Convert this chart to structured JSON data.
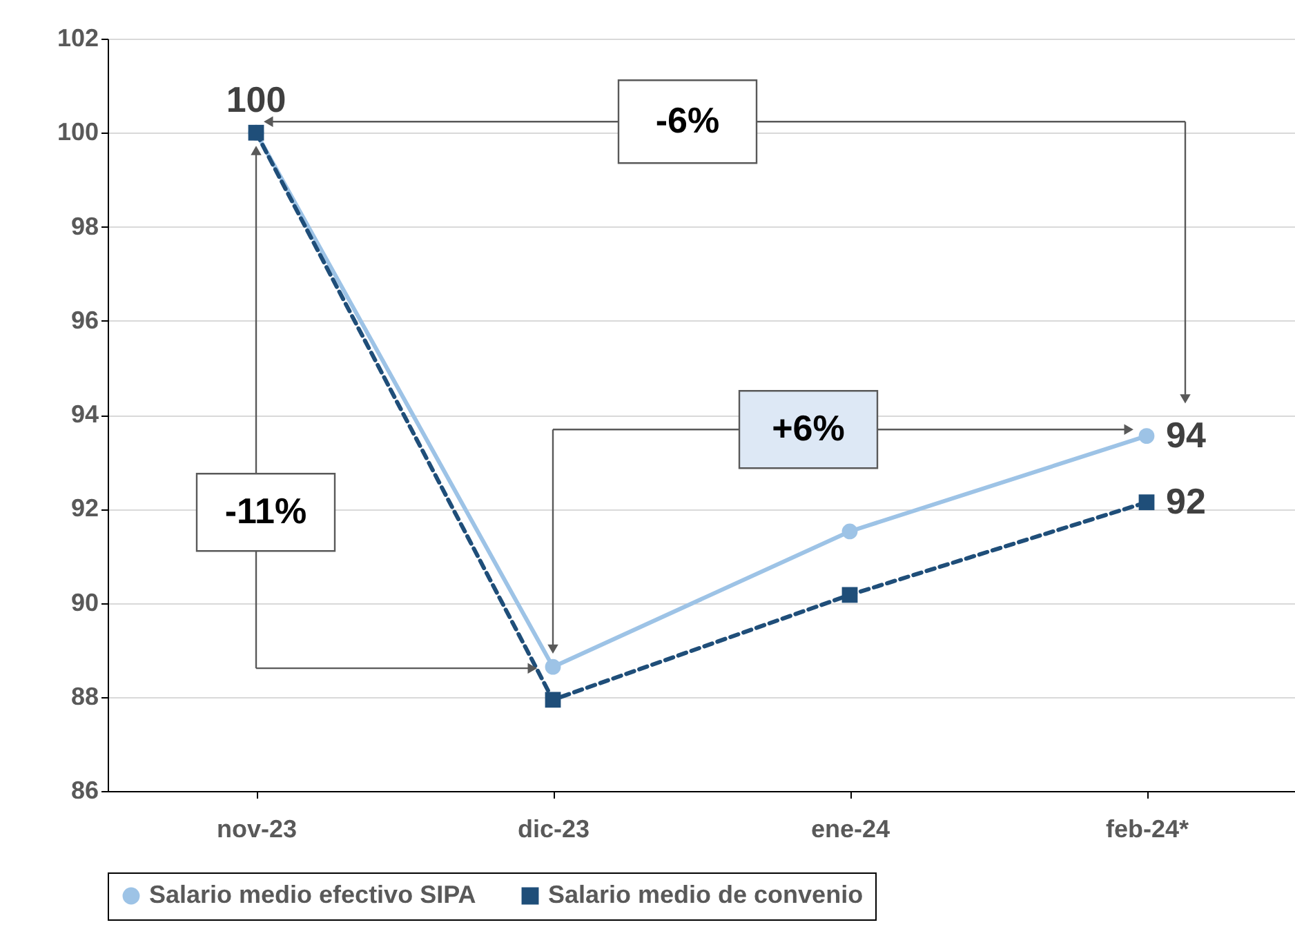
{
  "chart_data": {
    "type": "line",
    "categories": [
      "nov-23",
      "dic-23",
      "ene-24",
      "feb-24*"
    ],
    "series": [
      {
        "name": "Salario medio efectivo SIPA",
        "color": "#9dc3e6",
        "marker": "circle",
        "line_style": "solid",
        "values": [
          100,
          88.64,
          91.52,
          93.55
        ],
        "value_labels": [
          "100",
          null,
          null,
          "94"
        ]
      },
      {
        "name": "Salario medio de convenio",
        "color": "#1f4e79",
        "marker": "square",
        "line_style": "dashed",
        "values": [
          100,
          87.94,
          90.17,
          92.14
        ],
        "value_labels": [
          null,
          null,
          null,
          "92"
        ]
      }
    ],
    "ylim": [
      86,
      102
    ],
    "yticks": [
      86,
      88,
      90,
      92,
      94,
      96,
      98,
      100,
      102
    ],
    "grid": "y",
    "legend": "bottom",
    "annotations": [
      "-6%",
      "+6%",
      "-11%"
    ]
  }
}
